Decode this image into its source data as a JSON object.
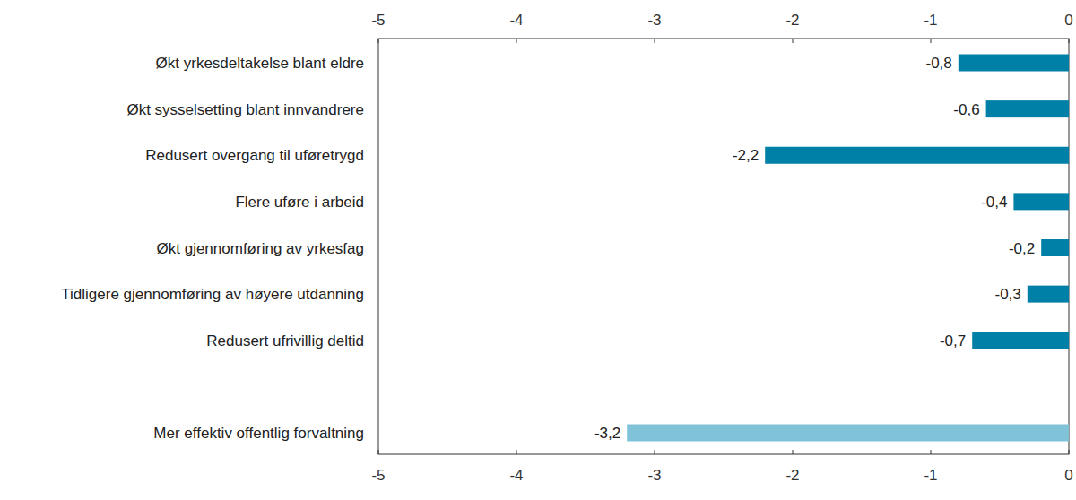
{
  "chart_data": {
    "type": "bar",
    "orientation": "horizontal",
    "categories": [
      "Økt yrkesdeltakelse blant eldre",
      "Økt sysselsetting blant innvandrere",
      "Redusert overgang til uføretrygd",
      "Flere uføre i arbeid",
      "Økt gjennomføring av yrkesfag",
      "Tidligere gjennomføring av høyere utdanning",
      "Redusert ufrivillig deltid",
      null,
      "Mer effektiv offentlig forvaltning"
    ],
    "values": [
      -0.8,
      -0.6,
      -2.2,
      -0.4,
      -0.2,
      -0.3,
      -0.7,
      null,
      -3.2
    ],
    "value_labels": [
      "-0,8",
      "-0,6",
      "-2,2",
      "-0,4",
      "-0,2",
      "-0,3",
      "-0,7",
      null,
      "-3,2"
    ],
    "colors": [
      "#0080a6",
      "#0080a6",
      "#0080a6",
      "#0080a6",
      "#0080a6",
      "#0080a6",
      "#0080a6",
      null,
      "#80c3d9"
    ],
    "xlim": [
      -5,
      0
    ],
    "xticks": [
      -5,
      -4,
      -3,
      -2,
      -1,
      0
    ],
    "grid": false,
    "data_labels": true
  }
}
